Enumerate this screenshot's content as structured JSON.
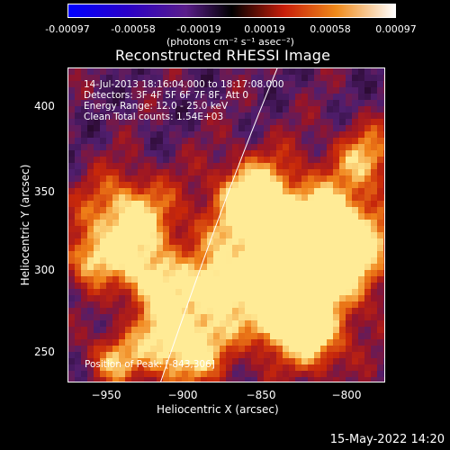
{
  "colorbar": {
    "ticks": [
      "-0.00097",
      "-0.00058",
      "-0.00019",
      "0.00019",
      "0.00058",
      "0.00097"
    ],
    "units": "(photons cm⁻² s⁻¹ asec⁻²)"
  },
  "title": "Reconstructed RHESSI Image",
  "info": {
    "time": "14-Jul-2013 18:16:04.000 to 18:17:08.000",
    "detectors": "Detectors: 3F 4F 5F 6F 7F 8F, Att 0",
    "energy": "Energy Range: 12.0 - 25.0 keV",
    "clean": "Clean     Total counts: 1.54E+03",
    "peak": "Position of Peak: [-843,306]"
  },
  "axes": {
    "xlabel": "Heliocentric X (arcsec)",
    "ylabel": "Heliocentric Y (arcsec)",
    "xticks": [
      "−950",
      "−900",
      "−850",
      "−800"
    ],
    "yticks": [
      "400",
      "350",
      "300",
      "250"
    ]
  },
  "footer_date": "15-May-2022 14:20",
  "colors": {
    "purple": "#5a1e7a",
    "dark": "#2a0a30",
    "red": "#c81e0a",
    "orange": "#f08a1a",
    "yellow": "#fff0a0",
    "limb": "#ffffff"
  }
}
